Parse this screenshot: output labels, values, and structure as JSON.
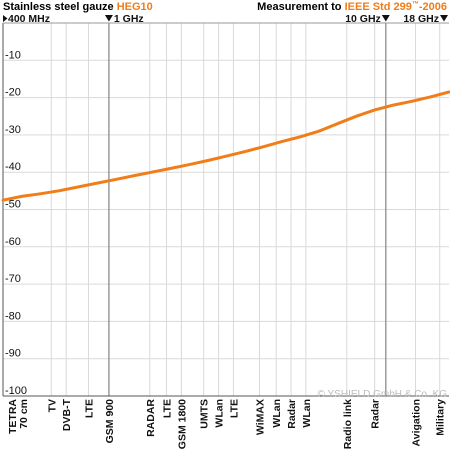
{
  "header": {
    "left_prefix": "Stainless steel gauze ",
    "left_product": "HEG10",
    "right_prefix": "Measurement to ",
    "right_standard": "IEEE Std 299",
    "right_tm": "™",
    "right_year": "-2006"
  },
  "colors": {
    "accent": "#f07d1a",
    "line": "#f07d1a",
    "grid": "#d9d9d9",
    "marker_line": "#8c8c8c",
    "text": "#111111",
    "watermark": "#bbbbbb"
  },
  "watermark": "© YSHIELD GmbH & Co. KG",
  "chart_data": {
    "type": "line",
    "freq_markers": [
      {
        "label": "400 MHz",
        "pos": 0,
        "arrow": "right"
      },
      {
        "label": "1 GHz",
        "pos": 5.7,
        "arrow": "down"
      },
      {
        "label": "10 GHz",
        "pos": 20.6,
        "arrow": "down"
      },
      {
        "label": "18 GHz",
        "pos": 24,
        "arrow": "down"
      }
    ],
    "ylim": [
      -100,
      0
    ],
    "yticks": [
      -10,
      -20,
      -30,
      -40,
      -50,
      -60,
      -70,
      -80,
      -90,
      -100
    ],
    "xlim": [
      0,
      24
    ],
    "categories": [
      {
        "label": "TETRA",
        "sub": "70 cm",
        "pos": 0
      },
      {
        "label": "TV",
        "pos": 2.6
      },
      {
        "label": "DVB-T",
        "pos": 3.4
      },
      {
        "label": "LTE",
        "pos": 4.6
      },
      {
        "label": "GSM 900",
        "pos": 5.7
      },
      {
        "label": "RADAR",
        "pos": 7.9
      },
      {
        "label": "LTE",
        "pos": 8.8
      },
      {
        "label": "GSM 1800",
        "pos": 9.6
      },
      {
        "label": "UMTS",
        "pos": 10.8
      },
      {
        "label": "WLan",
        "pos": 11.6
      },
      {
        "label": "LTE",
        "pos": 12.4
      },
      {
        "label": "WiMAX",
        "pos": 13.8
      },
      {
        "label": "WLan",
        "pos": 14.7
      },
      {
        "label": "Radar",
        "pos": 15.5
      },
      {
        "label": "WLan",
        "pos": 16.3
      },
      {
        "label": "Radio link",
        "pos": 18.5
      },
      {
        "label": "Radar",
        "pos": 20.0
      },
      {
        "label": "Avigation",
        "pos": 22.2
      },
      {
        "label": "Military",
        "pos": 23.5
      }
    ],
    "series": [
      {
        "x": [
          0,
          1,
          2,
          3,
          4,
          5,
          6,
          7,
          8,
          9,
          10,
          11,
          12,
          13,
          14,
          15,
          16,
          17,
          18,
          19,
          20,
          21,
          22,
          23,
          24
        ],
        "values": [
          -47.5,
          -46.5,
          -45.8,
          -45,
          -44,
          -43,
          -42,
          -41,
          -40,
          -39,
          -38,
          -36.9,
          -35.7,
          -34.5,
          -33.2,
          -31.8,
          -30.5,
          -29,
          -27,
          -25,
          -23.3,
          -22,
          -21,
          -19.8,
          -18.5
        ]
      }
    ],
    "grid": true
  }
}
